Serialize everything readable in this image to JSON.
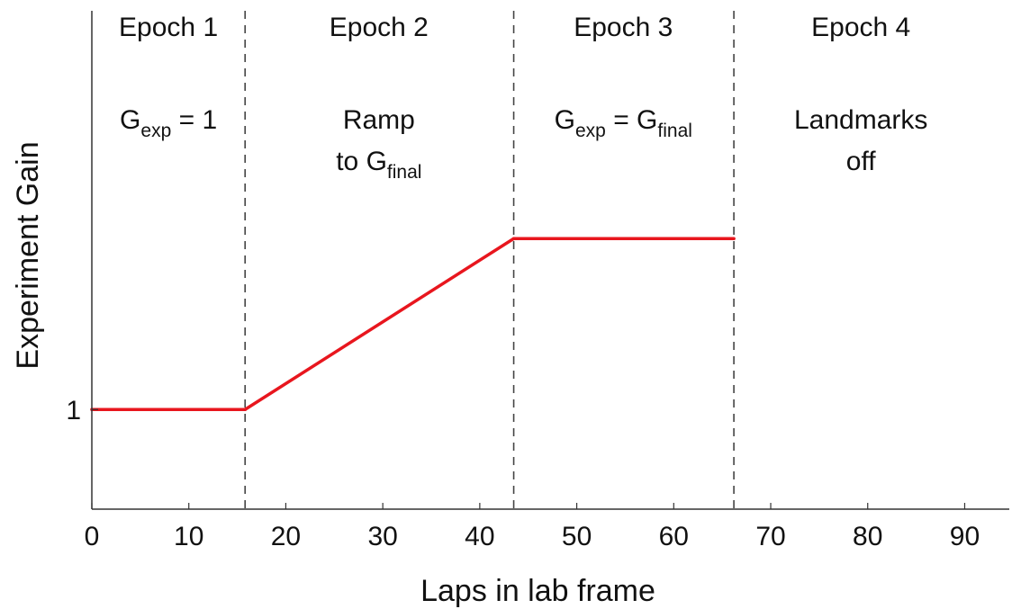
{
  "chart_data": {
    "type": "line",
    "title": "",
    "xlabel": "Laps in lab frame",
    "ylabel": "Experiment Gain",
    "xlim": [
      0,
      92
    ],
    "ylim": [
      0.3,
      3.8
    ],
    "x_ticks": [
      0,
      10,
      20,
      30,
      40,
      50,
      60,
      70,
      80,
      90
    ],
    "x_tick_labels": [
      "0",
      "10",
      "20",
      "30",
      "40",
      "50",
      "60",
      "70",
      "80",
      "90"
    ],
    "y_ticks": [
      1
    ],
    "y_tick_labels": [
      "1"
    ],
    "grid": false,
    "series": [
      {
        "color": "#e8161e",
        "x": [
          0,
          15.8,
          43.5,
          66.2
        ],
        "y": [
          1,
          1,
          2.2,
          2.2
        ]
      }
    ],
    "epoch_boundaries": [
      15.8,
      43.5,
      66.2
    ],
    "epochs": [
      {
        "title": "Epoch 1",
        "center_x": 7.9,
        "desc": [
          {
            "parts": [
              {
                "t": "G"
              },
              {
                "t": "exp",
                "sub": true
              },
              {
                "t": " = 1"
              }
            ]
          }
        ]
      },
      {
        "title": "Epoch 2",
        "center_x": 29.6,
        "desc": [
          {
            "parts": [
              {
                "t": "Ramp"
              }
            ]
          },
          {
            "parts": [
              {
                "t": "to G"
              },
              {
                "t": "final",
                "sub": true
              }
            ]
          }
        ]
      },
      {
        "title": "Epoch 3",
        "center_x": 54.8,
        "desc": [
          {
            "parts": [
              {
                "t": "G"
              },
              {
                "t": "exp",
                "sub": true
              },
              {
                "t": " = G"
              },
              {
                "t": "final",
                "sub": true
              }
            ]
          }
        ]
      },
      {
        "title": "Epoch 4",
        "center_x": 79.3,
        "desc": [
          {
            "parts": [
              {
                "t": "Landmarks"
              }
            ]
          },
          {
            "parts": [
              {
                "t": "off"
              }
            ]
          }
        ]
      }
    ]
  }
}
